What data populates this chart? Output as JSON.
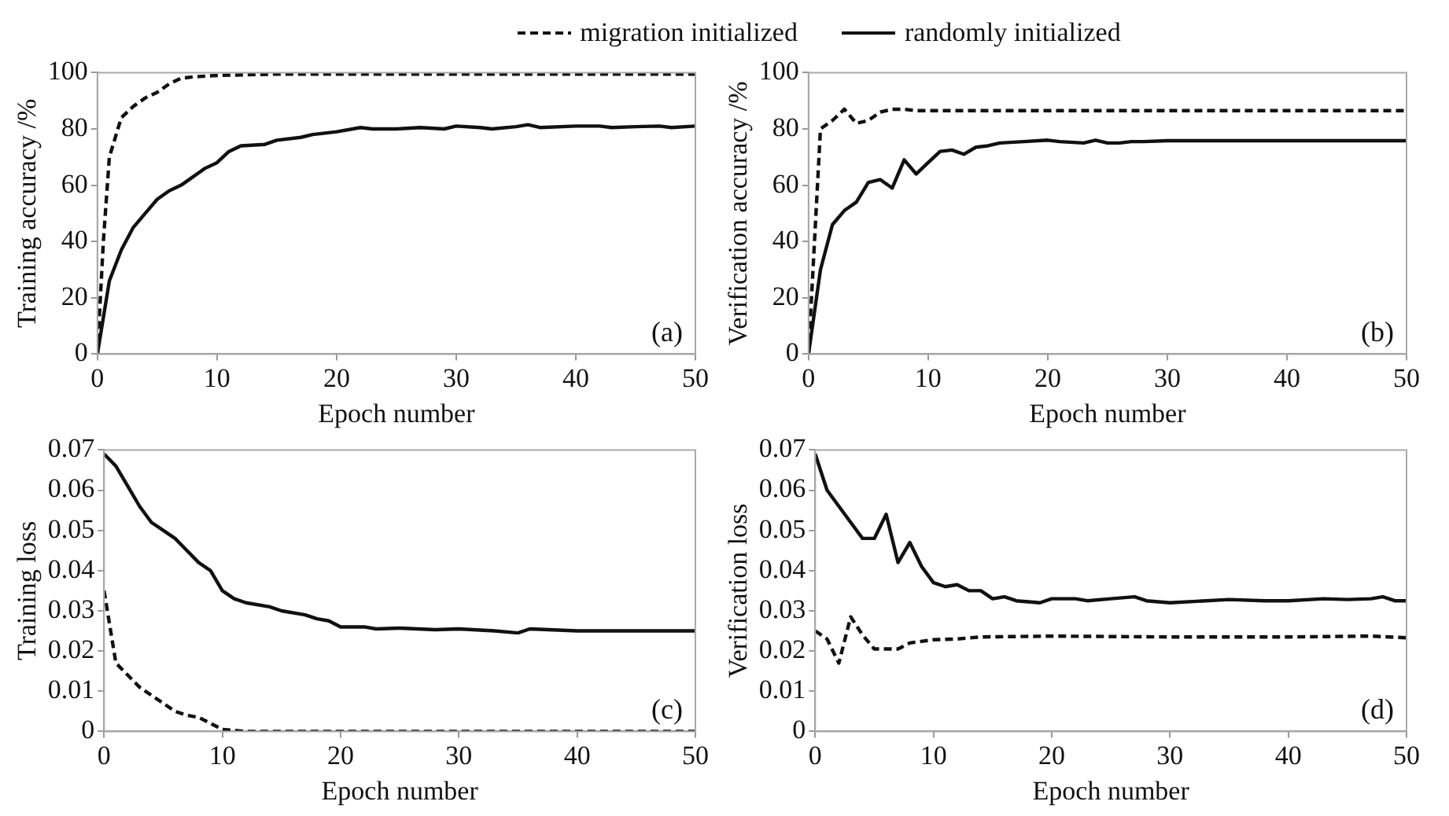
{
  "chart_data": [
    {
      "type": "line",
      "ylabel": "Training accuracy /%",
      "xlabel": "Epoch number",
      "annotations": [
        "(a)"
      ],
      "xlim": [
        0,
        50
      ],
      "xticks": [
        0,
        10,
        20,
        30,
        40,
        50
      ],
      "ylim": [
        0,
        100
      ],
      "yticks": [
        0,
        20,
        40,
        60,
        80,
        100
      ],
      "grid": false,
      "legend": "top",
      "marker": "none",
      "series": [
        {
          "name": "migration initialized",
          "color": "#111111",
          "line_style": "dashed",
          "x": [
            0,
            0.5,
            1,
            2,
            3,
            4,
            5,
            6,
            7,
            8,
            10,
            15,
            20,
            30,
            40,
            50
          ],
          "values": [
            0,
            40,
            70,
            84,
            88,
            91,
            93,
            96,
            98,
            98.5,
            99,
            99.5,
            99.5,
            99.5,
            99.5,
            99.5
          ]
        },
        {
          "name": "randomly initialized",
          "color": "#111111",
          "line_style": "solid",
          "x": [
            0,
            1,
            2,
            3,
            4,
            5,
            6,
            7,
            8,
            9,
            10,
            11,
            12,
            14,
            15,
            17,
            18,
            20,
            22,
            23,
            25,
            27,
            29,
            30,
            32,
            33,
            35,
            36,
            37,
            40,
            42,
            43,
            45,
            47,
            48,
            50
          ],
          "values": [
            0,
            26,
            37,
            45,
            50,
            55,
            58,
            60,
            63,
            66,
            68,
            72,
            74,
            74.5,
            76,
            77,
            78,
            79,
            80.5,
            80,
            80,
            80.5,
            80,
            81,
            80.5,
            80,
            80.8,
            81.5,
            80.5,
            81,
            81,
            80.5,
            80.8,
            81,
            80.5,
            81
          ]
        }
      ]
    },
    {
      "type": "line",
      "ylabel": "Verification accuracy /%",
      "xlabel": "Epoch number",
      "annotations": [
        "(b)"
      ],
      "xlim": [
        0,
        50
      ],
      "xticks": [
        0,
        10,
        20,
        30,
        40,
        50
      ],
      "ylim": [
        0,
        100
      ],
      "yticks": [
        0,
        20,
        40,
        60,
        80,
        100
      ],
      "grid": false,
      "marker": "none",
      "series": [
        {
          "color": "#111111",
          "line_style": "dashed",
          "x": [
            0,
            1,
            2,
            3,
            4,
            5,
            6,
            7,
            8,
            9,
            50
          ],
          "values": [
            0,
            80,
            83,
            87,
            82,
            83,
            86,
            87,
            87,
            86.5,
            86.5
          ]
        },
        {
          "color": "#111111",
          "line_style": "solid",
          "x": [
            0,
            1,
            2,
            3,
            4,
            5,
            6,
            7,
            8,
            9,
            10,
            11,
            12,
            13,
            14,
            15,
            16,
            18,
            20,
            21,
            23,
            24,
            25,
            26,
            27,
            28,
            30,
            50
          ],
          "values": [
            0,
            30,
            46,
            51,
            54,
            61,
            62,
            59,
            69,
            64,
            68,
            72,
            72.5,
            71,
            73.5,
            74,
            75,
            75.5,
            76,
            75.5,
            75,
            76,
            75,
            75,
            75.5,
            75.5,
            75.8,
            75.8
          ]
        }
      ]
    },
    {
      "type": "line",
      "ylabel": "Training loss",
      "xlabel": "Epoch number",
      "annotations": [
        "(c)"
      ],
      "xlim": [
        0,
        50
      ],
      "xticks": [
        0,
        10,
        20,
        30,
        40,
        50
      ],
      "ylim": [
        0,
        0.07
      ],
      "yticks": [
        0,
        0.01,
        0.02,
        0.03,
        0.04,
        0.05,
        0.06,
        0.07
      ],
      "grid": false,
      "marker": "none",
      "series": [
        {
          "color": "#111111",
          "line_style": "dashed",
          "x": [
            0,
            1,
            2,
            3,
            4,
            5,
            6,
            7,
            8,
            9,
            10,
            12,
            50
          ],
          "values": [
            0.035,
            0.017,
            0.014,
            0.011,
            0.009,
            0.007,
            0.005,
            0.004,
            0.0035,
            0.002,
            0.0005,
            0,
            0
          ]
        },
        {
          "color": "#111111",
          "line_style": "solid",
          "x": [
            0,
            1,
            2,
            3,
            4,
            5,
            6,
            7,
            8,
            9,
            10,
            11,
            12,
            14,
            15,
            17,
            18,
            19,
            20,
            22,
            23,
            25,
            28,
            30,
            33,
            35,
            36,
            40,
            45,
            50
          ],
          "values": [
            0.069,
            0.066,
            0.061,
            0.056,
            0.052,
            0.05,
            0.048,
            0.045,
            0.042,
            0.04,
            0.035,
            0.033,
            0.032,
            0.031,
            0.03,
            0.029,
            0.028,
            0.0275,
            0.026,
            0.026,
            0.0255,
            0.0257,
            0.0253,
            0.0255,
            0.025,
            0.0245,
            0.0255,
            0.025,
            0.025,
            0.025
          ]
        }
      ]
    },
    {
      "type": "line",
      "ylabel": "Verification loss",
      "xlabel": "Epoch number",
      "annotations": [
        "(d)"
      ],
      "xlim": [
        0,
        50
      ],
      "xticks": [
        0,
        10,
        20,
        30,
        40,
        50
      ],
      "ylim": [
        0,
        0.07
      ],
      "yticks": [
        0,
        0.01,
        0.02,
        0.03,
        0.04,
        0.05,
        0.06,
        0.07
      ],
      "grid": false,
      "marker": "none",
      "series": [
        {
          "color": "#111111",
          "line_style": "dashed",
          "x": [
            0,
            1,
            2,
            3,
            4,
            5,
            7,
            8,
            10,
            12,
            14,
            20,
            30,
            40,
            47,
            50
          ],
          "values": [
            0.025,
            0.023,
            0.017,
            0.0285,
            0.024,
            0.0205,
            0.0205,
            0.022,
            0.0228,
            0.023,
            0.0235,
            0.0237,
            0.0235,
            0.0235,
            0.0237,
            0.0233
          ]
        },
        {
          "color": "#111111",
          "line_style": "solid",
          "x": [
            0,
            1,
            2,
            3,
            4,
            5,
            6,
            7,
            8,
            9,
            10,
            11,
            12,
            13,
            14,
            15,
            16,
            17,
            19,
            20,
            22,
            23,
            25,
            27,
            28,
            30,
            35,
            38,
            40,
            43,
            45,
            47,
            48,
            49,
            50
          ],
          "values": [
            0.069,
            0.06,
            0.056,
            0.052,
            0.048,
            0.048,
            0.054,
            0.042,
            0.047,
            0.041,
            0.037,
            0.036,
            0.0365,
            0.035,
            0.035,
            0.033,
            0.0335,
            0.0325,
            0.032,
            0.033,
            0.033,
            0.0325,
            0.033,
            0.0335,
            0.0325,
            0.032,
            0.0328,
            0.0325,
            0.0325,
            0.033,
            0.0328,
            0.033,
            0.0335,
            0.0325,
            0.0325
          ]
        }
      ]
    }
  ]
}
